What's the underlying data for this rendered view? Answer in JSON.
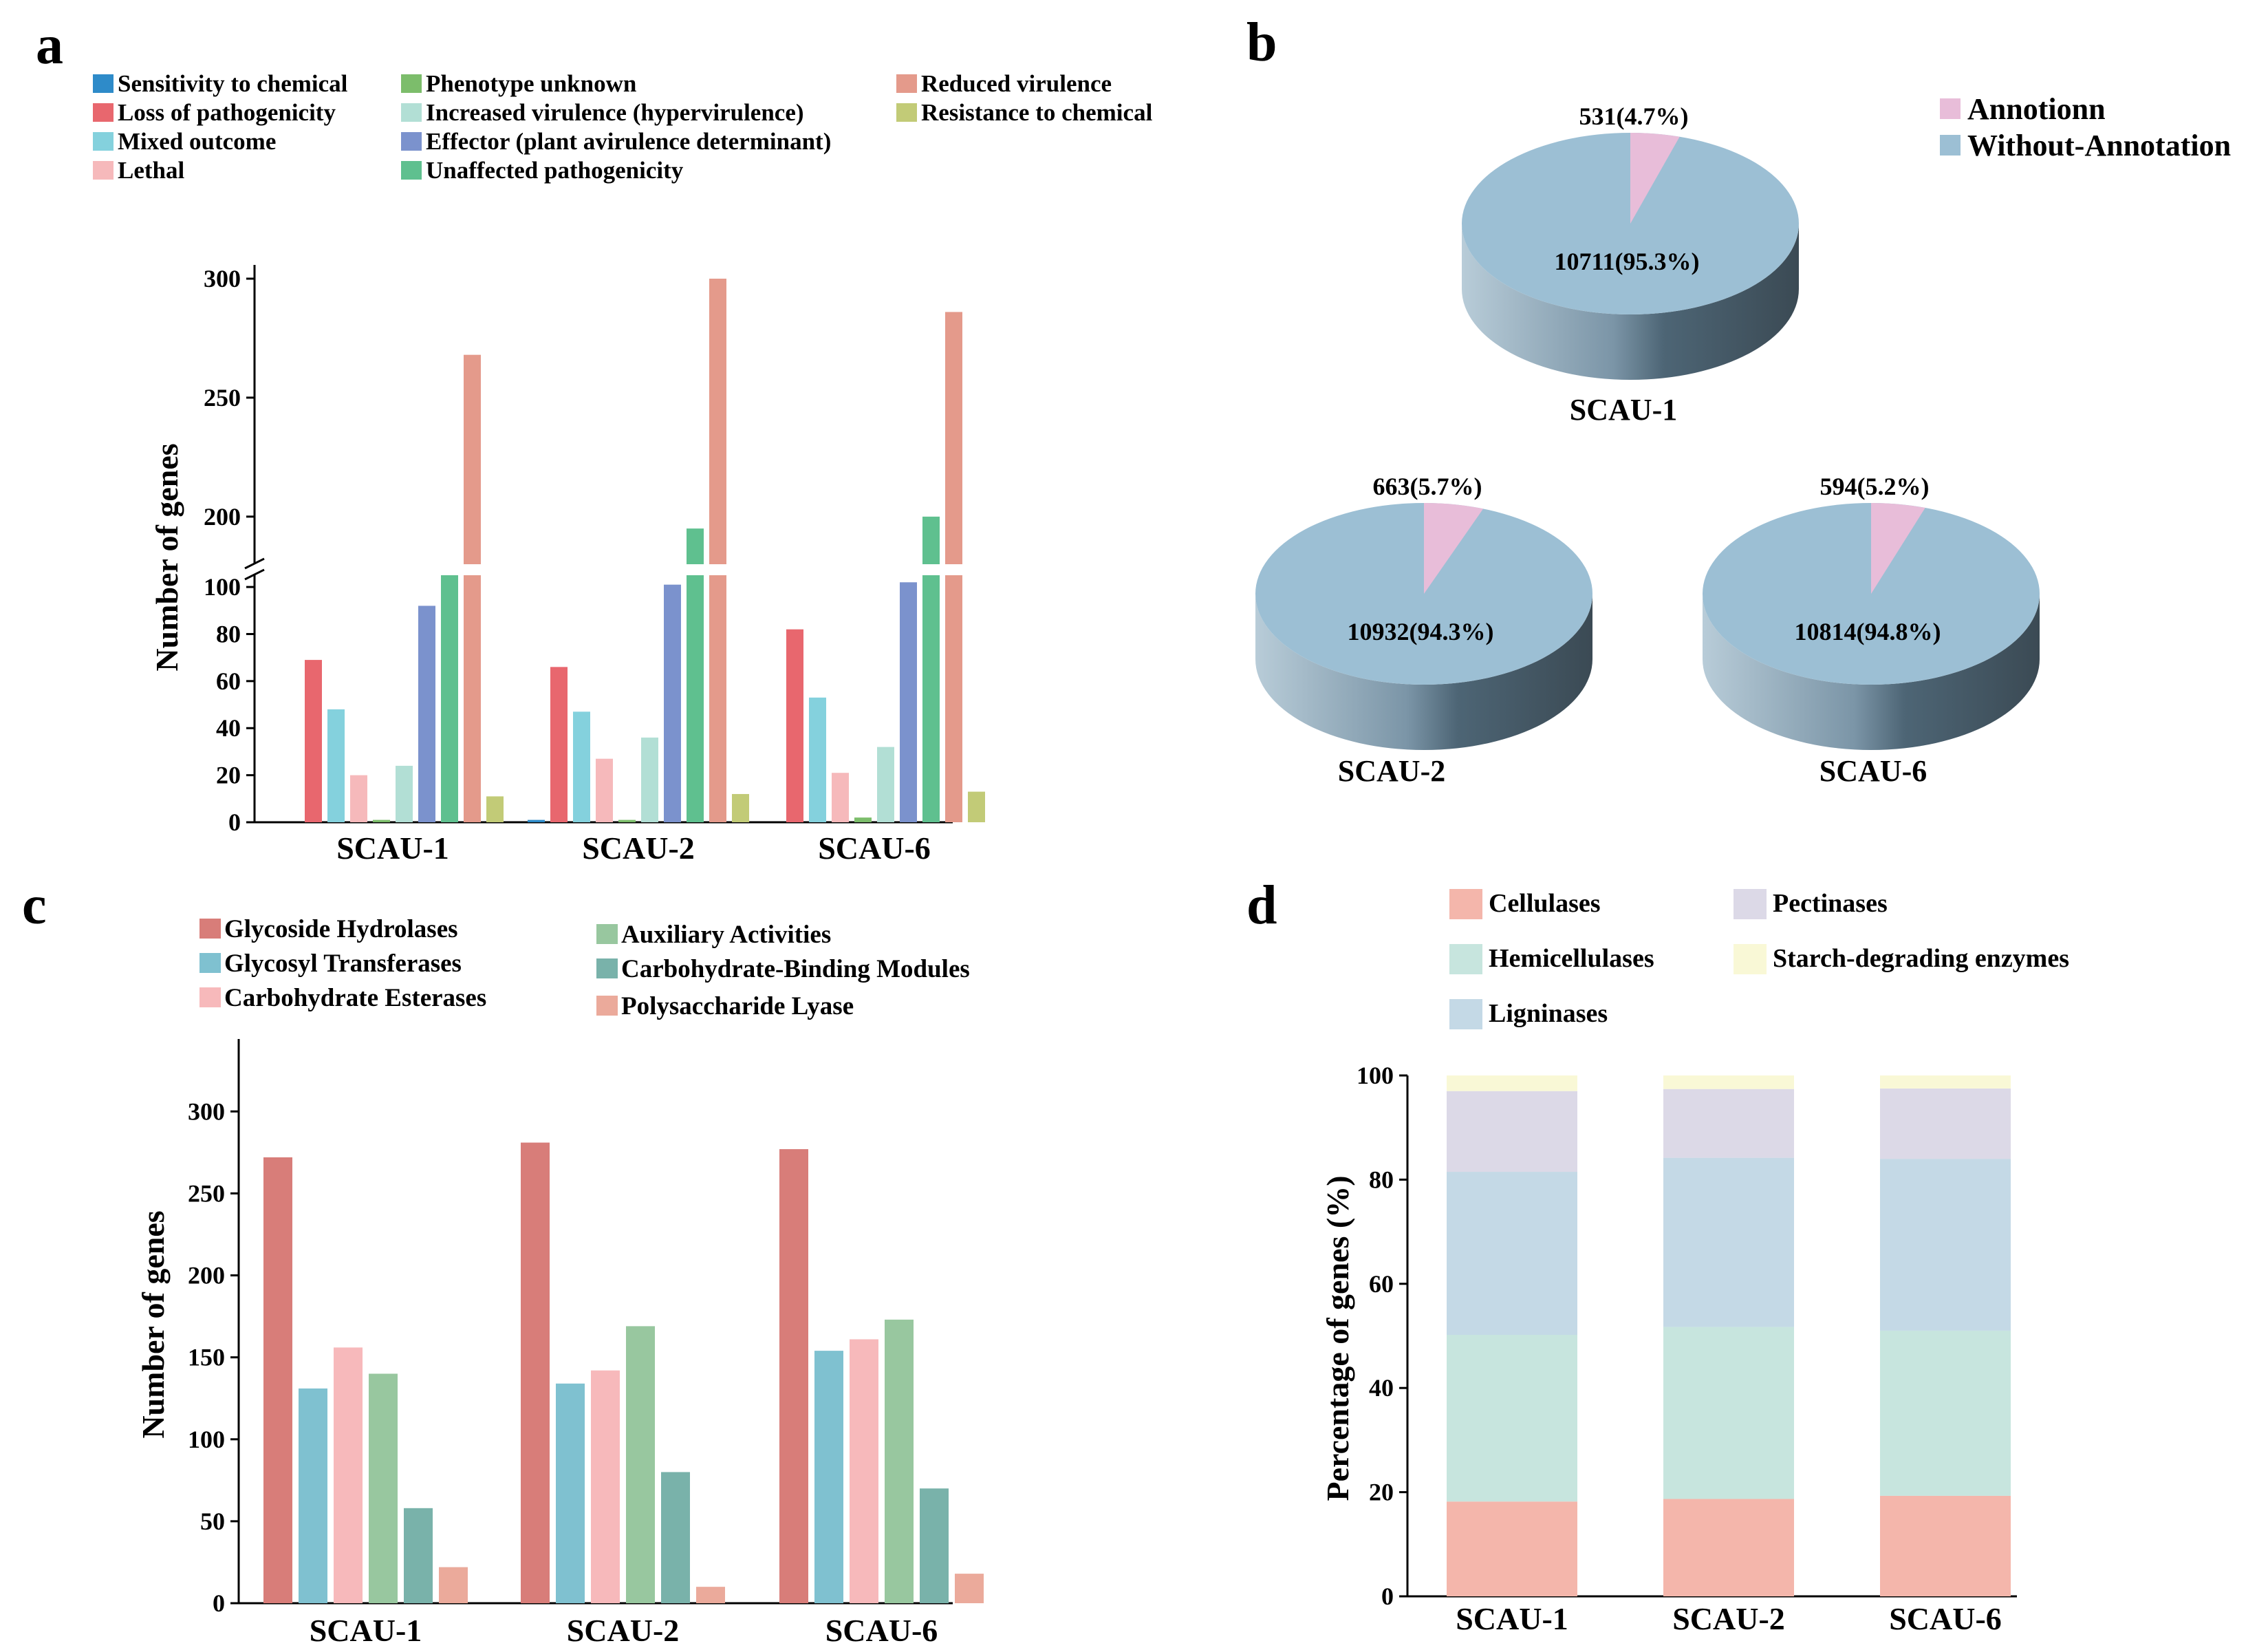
{
  "chart_data": [
    {
      "panel": "a",
      "type": "bar",
      "broken_axis": true,
      "ylabel": "Number of genes",
      "categories": [
        "SCAU-1",
        "SCAU-2",
        "SCAU-6"
      ],
      "ylim_lower": [
        0,
        105
      ],
      "ylim_upper": [
        180,
        300
      ],
      "yticks_lower": [
        0,
        20,
        40,
        60,
        80,
        100
      ],
      "yticks_upper": [
        200,
        250,
        300
      ],
      "series": [
        {
          "name": "Sensitivity to chemical",
          "color": "#2e8bc9",
          "values": [
            0,
            1,
            0
          ]
        },
        {
          "name": "Loss of pathogenicity",
          "color": "#e8676e",
          "values": [
            69,
            66,
            82
          ]
        },
        {
          "name": "Mixed outcome",
          "color": "#84d1dd",
          "values": [
            48,
            47,
            53
          ]
        },
        {
          "name": "Lethal",
          "color": "#f6b9bb",
          "values": [
            20,
            27,
            21
          ]
        },
        {
          "name": "Phenotype unknown",
          "color": "#7cbd6b",
          "values": [
            1,
            1,
            2
          ]
        },
        {
          "name": "Increased virulence (hypervirulence)",
          "color": "#b2dfd5",
          "values": [
            24,
            36,
            32
          ]
        },
        {
          "name": "Effector (plant avirulence determinant)",
          "color": "#7b92cd",
          "values": [
            92,
            101,
            102
          ]
        },
        {
          "name": "Unaffected pathogenicity",
          "color": "#5fc08f",
          "values": [
            160,
            195,
            200
          ]
        },
        {
          "name": "Reduced virulence",
          "color": "#e49a8b",
          "values": [
            268,
            300,
            286
          ]
        },
        {
          "name": "Resistance to chemical",
          "color": "#c2cb77",
          "values": [
            11,
            12,
            13
          ]
        }
      ]
    },
    {
      "panel": "b",
      "type": "pie",
      "legend": [
        {
          "name": "Annotionn",
          "color": "#e8bdd9"
        },
        {
          "name": "Without-Annotation",
          "color": "#9cbfd4"
        }
      ],
      "pies": [
        {
          "title": "SCAU-1",
          "annotated": 531,
          "annotated_label": "531(4.7%)",
          "without": 10711,
          "without_label": "10711(95.3%)"
        },
        {
          "title": "SCAU-2",
          "annotated": 663,
          "annotated_label": "663(5.7%)",
          "without": 10932,
          "without_label": "10932(94.3%)"
        },
        {
          "title": "SCAU-6",
          "annotated": 594,
          "annotated_label": "594(5.2%)",
          "without": 10814,
          "without_label": "10814(94.8%)"
        }
      ]
    },
    {
      "panel": "c",
      "type": "bar",
      "ylabel": "Number of genes",
      "categories": [
        "SCAU-1",
        "SCAU-2",
        "SCAU-6"
      ],
      "ylim": [
        0,
        340
      ],
      "yticks": [
        0,
        50,
        100,
        150,
        200,
        250,
        300
      ],
      "series": [
        {
          "name": "Glycoside Hydrolases",
          "color": "#d87d79",
          "values": [
            272,
            281,
            277
          ]
        },
        {
          "name": "Glycosyl Transferases",
          "color": "#7fc1d0",
          "values": [
            131,
            134,
            154
          ]
        },
        {
          "name": "Carbohydrate Esterases",
          "color": "#f7b9bb",
          "values": [
            156,
            142,
            161
          ]
        },
        {
          "name": "Auxiliary Activities",
          "color": "#98c79f",
          "values": [
            140,
            169,
            173
          ]
        },
        {
          "name": "Carbohydrate-Binding Modules",
          "color": "#79b2aa",
          "values": [
            58,
            80,
            70
          ]
        },
        {
          "name": "Polysaccharide Lyase",
          "color": "#ebaa9b",
          "values": [
            22,
            10,
            18
          ]
        }
      ]
    },
    {
      "panel": "d",
      "type": "bar",
      "stacked": true,
      "ylabel": "Percentage of genes (%)",
      "categories": [
        "SCAU-1",
        "SCAU-2",
        "SCAU-6"
      ],
      "ylim": [
        0,
        100
      ],
      "yticks": [
        0,
        20,
        40,
        60,
        80,
        100
      ],
      "series": [
        {
          "name": "Cellulases",
          "color": "#f4b6ab",
          "values": [
            18.2,
            18.7,
            19.3
          ]
        },
        {
          "name": "Hemicellulases",
          "color": "#c7e5de",
          "values": [
            32.0,
            33.0,
            31.7
          ]
        },
        {
          "name": "Ligninases",
          "color": "#c4d9e6",
          "values": [
            31.3,
            32.5,
            33.0
          ]
        },
        {
          "name": "Pectinases",
          "color": "#dcd9e7",
          "values": [
            15.5,
            13.2,
            13.5
          ]
        },
        {
          "name": "Starch-degrading enzymes",
          "color": "#f9f8d6",
          "values": [
            3.0,
            2.6,
            2.5
          ]
        }
      ]
    }
  ],
  "panel_labels": {
    "a": "a",
    "b": "b",
    "c": "c",
    "d": "d"
  }
}
